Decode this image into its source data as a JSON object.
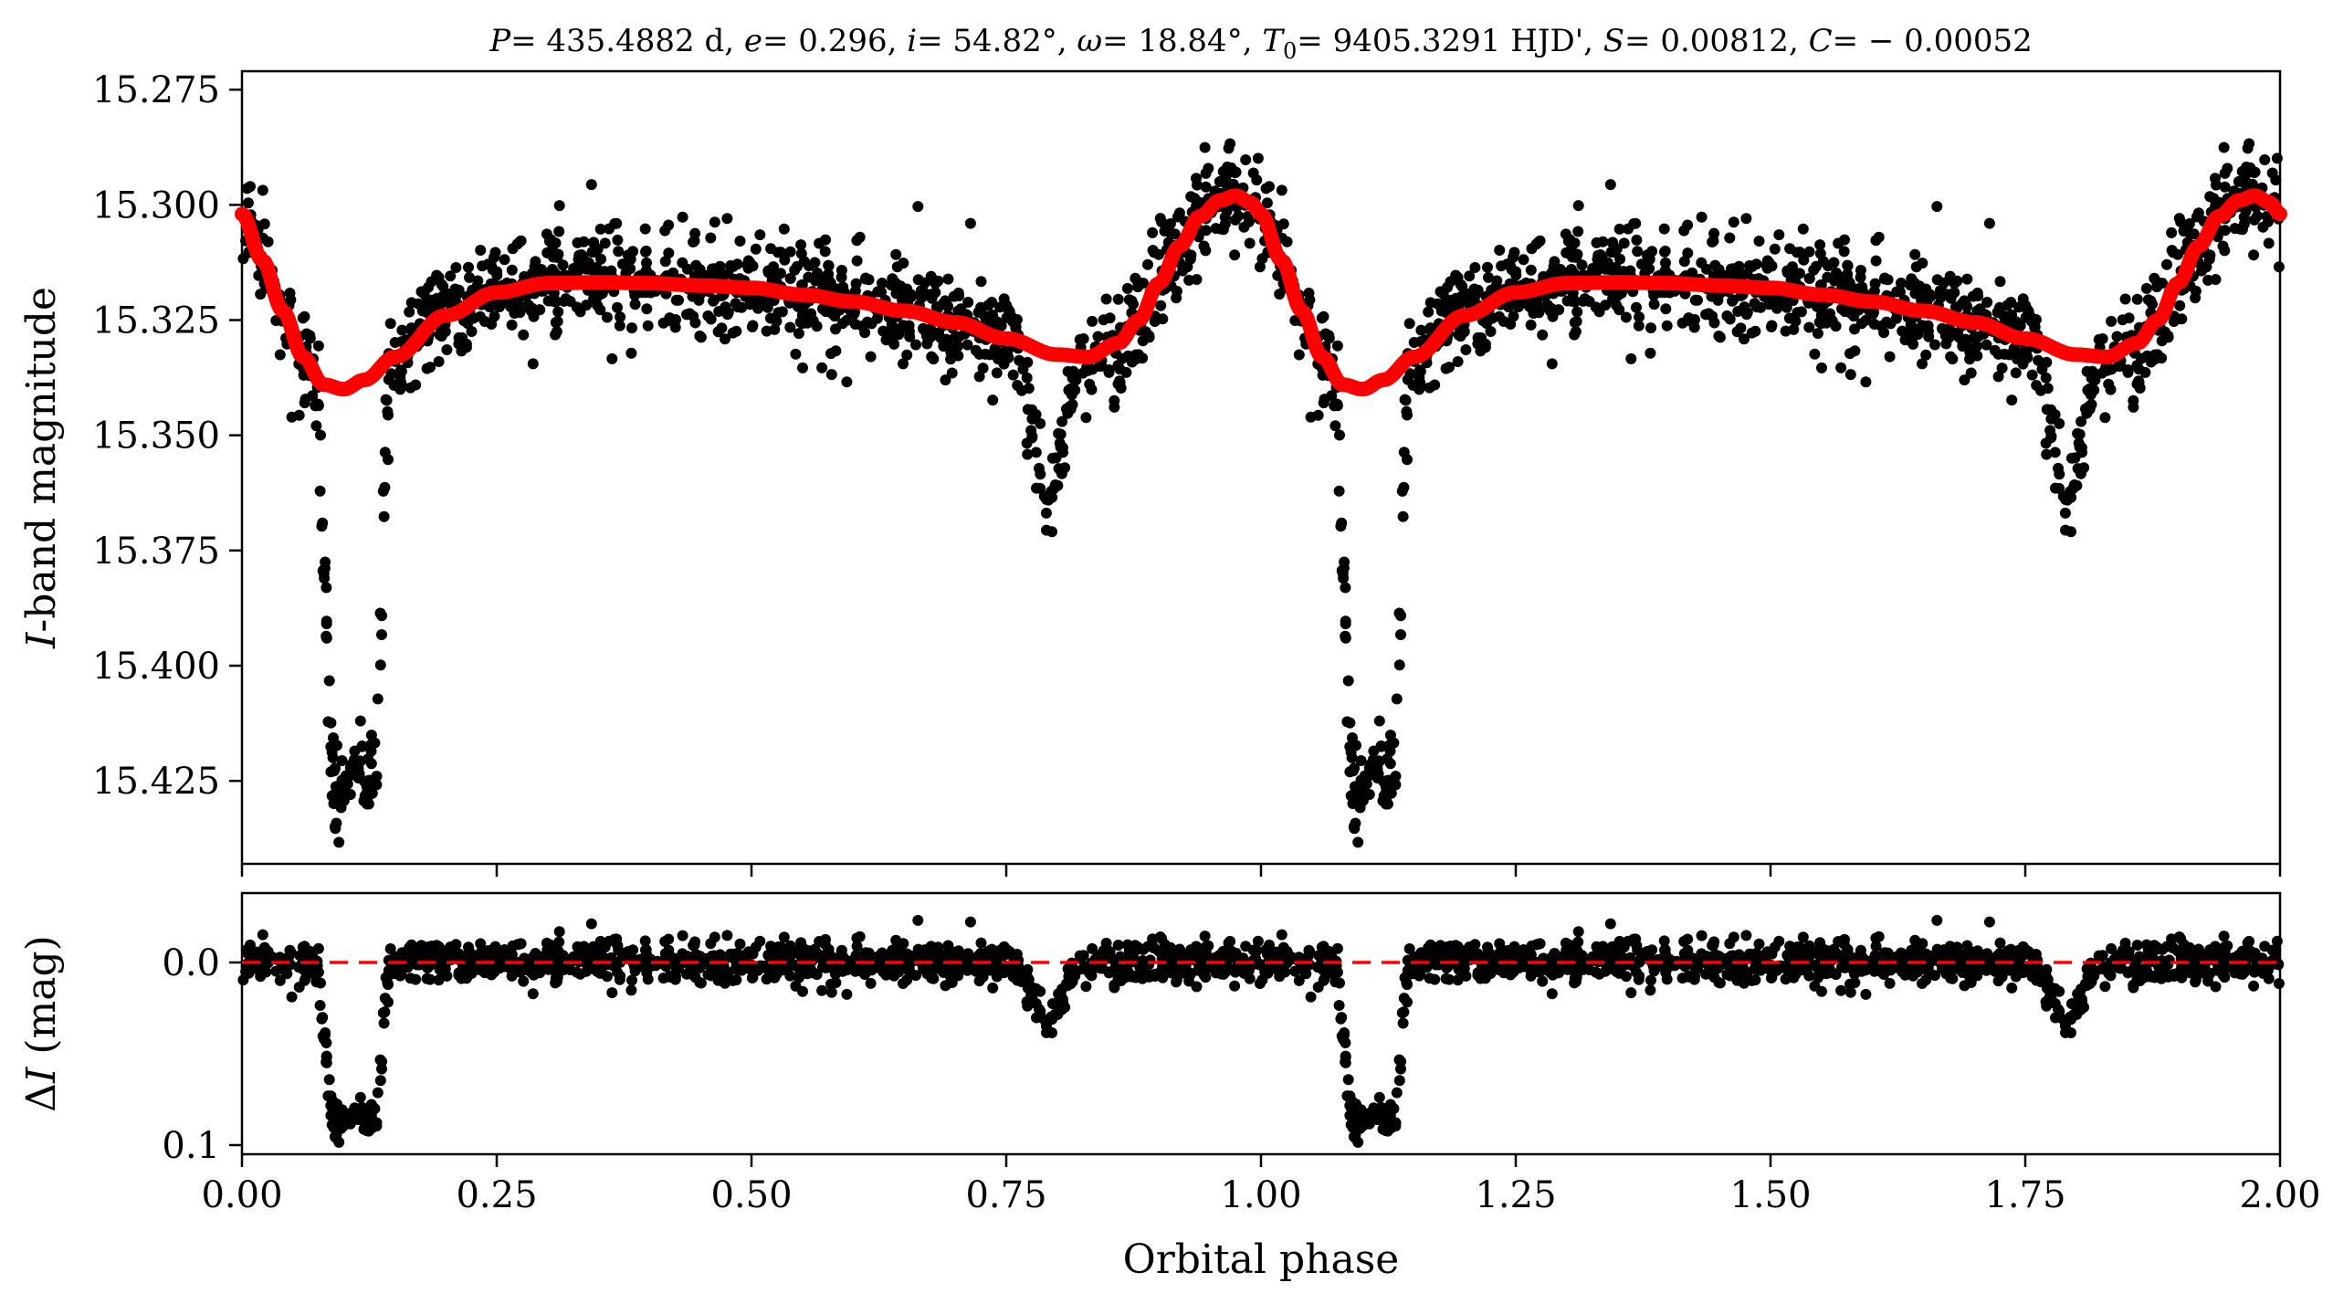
{
  "chart_data": [
    {
      "panel": "light-curve",
      "type": "scatter",
      "title": "P = 435.4882 d, e = 0.296, i = 54.82°, ω = 18.84°, T0 = 9405.3291 HJD', S = 0.00812, C = −0.00052",
      "title_parts": {
        "P": "P",
        "P_val": "= 435.4882 d, ",
        "e": "e",
        "e_val": "= 0.296, ",
        "i": "i",
        "i_val": "= 54.82°, ",
        "w": "ω",
        "w_val": "= 18.84°, ",
        "T": "T",
        "T_sub": "0",
        "T_val": "= 9405.3291 HJD', ",
        "S": "S",
        "S_val": "= 0.00812, ",
        "C": "C",
        "C_val": "= − 0.00052"
      },
      "xlabel": "Orbital phase",
      "ylabel_italic": "I",
      "ylabel_rest": "-band magnitude",
      "xlim": [
        0.0,
        2.0
      ],
      "ylim": [
        15.443,
        15.271
      ],
      "y_inverted": true,
      "yticks": [
        15.275,
        15.3,
        15.325,
        15.35,
        15.375,
        15.4,
        15.425
      ],
      "ytick_labels": [
        "15.275",
        "15.300",
        "15.325",
        "15.350",
        "15.375",
        "15.400",
        "15.425"
      ],
      "model_color": "#ff0000",
      "point_color": "#000000",
      "model_curve": {
        "x": [
          0.0,
          0.02,
          0.04,
          0.06,
          0.08,
          0.1,
          0.12,
          0.15,
          0.2,
          0.25,
          0.3,
          0.35,
          0.4,
          0.45,
          0.5,
          0.55,
          0.6,
          0.65,
          0.7,
          0.75,
          0.8,
          0.83,
          0.86,
          0.88,
          0.9,
          0.92,
          0.94,
          0.96,
          0.975,
          0.99,
          1.0
        ],
        "y": [
          15.302,
          15.312,
          15.323,
          15.333,
          15.339,
          15.34,
          15.338,
          15.333,
          15.324,
          15.319,
          15.317,
          15.3168,
          15.317,
          15.3175,
          15.318,
          15.3195,
          15.321,
          15.323,
          15.3255,
          15.329,
          15.3325,
          15.333,
          15.33,
          15.325,
          15.317,
          15.309,
          15.3025,
          15.299,
          15.298,
          15.2995,
          15.302
        ]
      },
      "primary_eclipse": {
        "center_phase": 0.11,
        "depth_mag": 0.085
      },
      "secondary_eclipse": {
        "center_phase": 0.79,
        "depth_mag": 0.035
      },
      "n_points_per_cycle": 1200
    },
    {
      "panel": "residuals",
      "type": "scatter",
      "xlabel": "Orbital phase",
      "ylabel_delta": "Δ",
      "ylabel_italic": "I",
      "ylabel_rest": " (mag)",
      "xlim": [
        0.0,
        2.0
      ],
      "ylim": [
        0.105,
        -0.038
      ],
      "y_inverted": true,
      "yticks": [
        0.0,
        0.1
      ],
      "ytick_labels": [
        "0.0",
        "0.1"
      ],
      "xticks": [
        0.0,
        0.25,
        0.5,
        0.75,
        1.0,
        1.25,
        1.5,
        1.75,
        2.0
      ],
      "xtick_labels": [
        "0.00",
        "0.25",
        "0.50",
        "0.75",
        "1.00",
        "1.25",
        "1.50",
        "1.75",
        "2.00"
      ],
      "zero_line": 0.0,
      "zero_line_color": "#ff0000"
    }
  ]
}
